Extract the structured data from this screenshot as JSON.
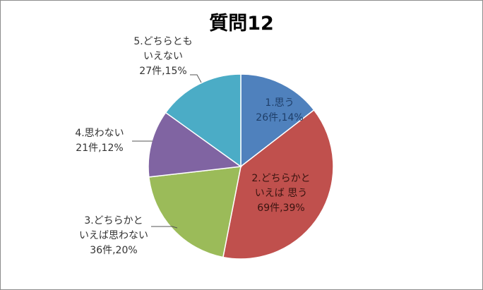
{
  "chart_data": {
    "type": "pie",
    "title": "質問12",
    "slices": [
      {
        "label_lines": [
          "1.思う",
          "26件,14%"
        ],
        "value": 26,
        "percent": 14,
        "color": "#4f81bd",
        "text_color": "#1f3f6a"
      },
      {
        "label_lines": [
          "2.どちらかと",
          "いえば 思う",
          "69件,39%"
        ],
        "value": 69,
        "percent": 39,
        "color": "#c0504d",
        "text_color": "#3a1410"
      },
      {
        "label_lines": [
          "3.どちらかと",
          "いえば思わない",
          "36件,20%"
        ],
        "value": 36,
        "percent": 20,
        "color": "#9bbb59",
        "text_color": "#333333"
      },
      {
        "label_lines": [
          "4.思わない",
          "21件,12%"
        ],
        "value": 21,
        "percent": 12,
        "color": "#8064a2",
        "text_color": "#333333"
      },
      {
        "label_lines": [
          "5.どちらとも",
          "いえない",
          "27件,15%"
        ],
        "value": 27,
        "percent": 15,
        "color": "#4bacc6",
        "text_color": "#333333"
      }
    ],
    "legend": "none"
  }
}
